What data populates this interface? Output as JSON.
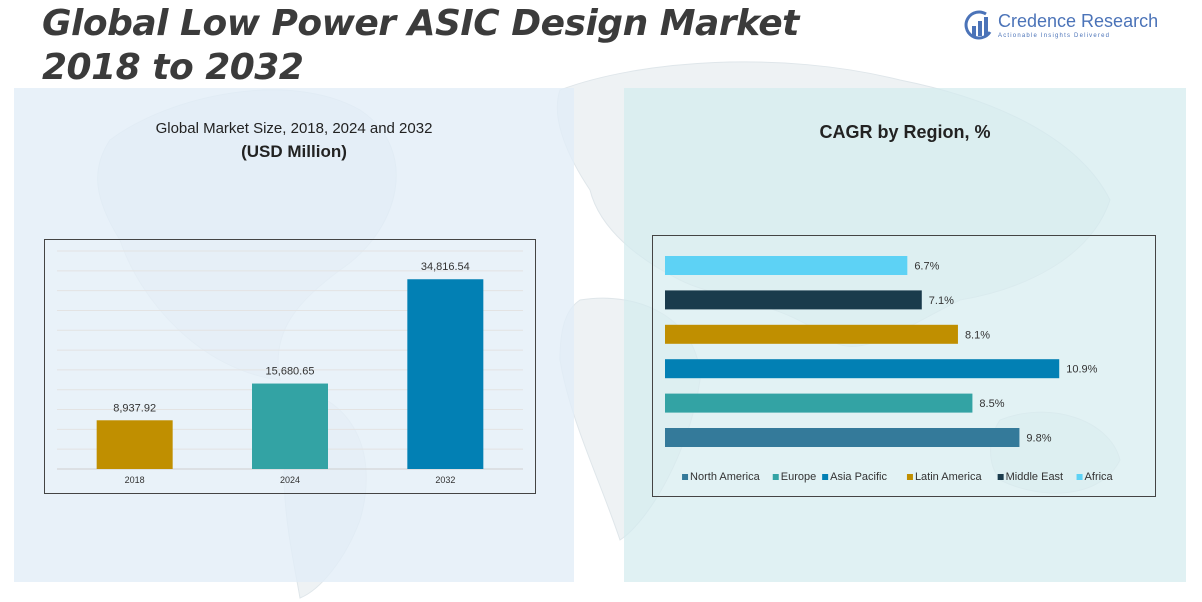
{
  "header": {
    "title_line1": "Global Low Power ASIC Design Market",
    "title_line2": "2018 to 2032"
  },
  "logo": {
    "name": "Credence Research",
    "tagline": "Actionable Insights Delivered"
  },
  "left_panel": {
    "title": "Global Market Size, 2018, 2024 and 2032",
    "subtitle": "(USD Million)"
  },
  "right_panel": {
    "title": "CAGR by Region, %"
  },
  "chart_data": [
    {
      "type": "bar",
      "title": "Global Market Size, 2018, 2024 and 2032",
      "ylabel": "USD Million",
      "categories": [
        "2018",
        "2024",
        "2032"
      ],
      "values": [
        8937.92,
        15680.65,
        34816.54
      ],
      "value_labels": [
        "8,937.92",
        "15,680.65",
        "34,816.54"
      ],
      "colors": [
        "#c08f00",
        "#33a3a4",
        "#0280b4"
      ],
      "ylim": [
        0,
        40000
      ],
      "grid": true
    },
    {
      "type": "bar",
      "orientation": "horizontal",
      "title": "CAGR by Region, %",
      "categories": [
        "Africa",
        "Middle East",
        "Latin America",
        "Asia Pacific",
        "Europe",
        "North America"
      ],
      "values": [
        6.7,
        7.1,
        8.1,
        10.9,
        8.5,
        9.8
      ],
      "value_labels": [
        "6.7%",
        "7.1%",
        "8.1%",
        "10.9%",
        "8.5%",
        "9.8%"
      ],
      "colors": [
        "#5dd2f5",
        "#1a3b4c",
        "#c08f00",
        "#0280b4",
        "#33a3a4",
        "#347a9a"
      ],
      "xlim": [
        0,
        12
      ],
      "legend": {
        "position": "bottom",
        "items": [
          {
            "label": "North America",
            "color": "#347a9a"
          },
          {
            "label": "Europe",
            "color": "#33a3a4"
          },
          {
            "label": "Asia Pacific",
            "color": "#0280b4"
          },
          {
            "label": "Latin America",
            "color": "#c08f00"
          },
          {
            "label": "Middle East",
            "color": "#1a3b4c"
          },
          {
            "label": "Africa",
            "color": "#5dd2f5"
          }
        ]
      }
    }
  ]
}
